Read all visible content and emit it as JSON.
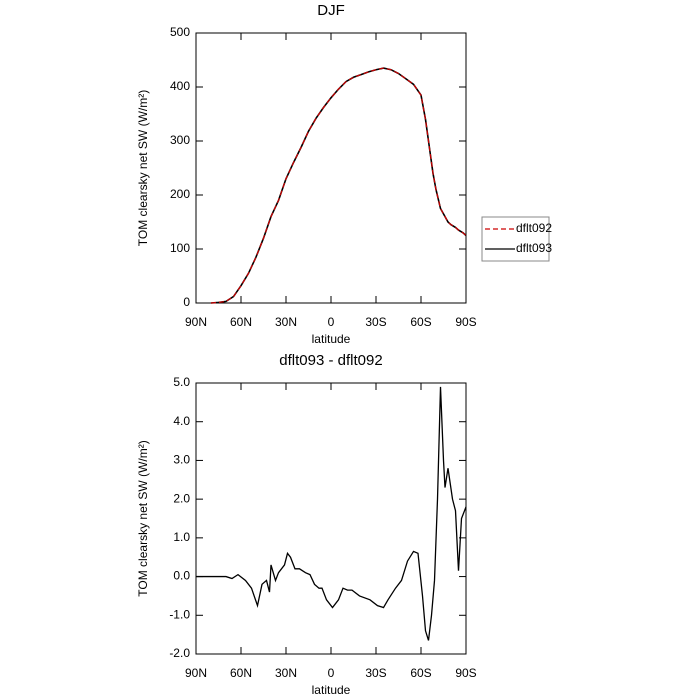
{
  "chart_data": [
    {
      "type": "line",
      "title": "DJF",
      "xlabel": "latitude",
      "ylabel": "TOM clearsky net SW (W/m²)",
      "x": [
        80,
        75,
        70,
        65,
        60,
        55,
        50,
        45,
        40,
        35,
        30,
        25,
        20,
        15,
        10,
        5,
        0,
        -5,
        -10,
        -15,
        -20,
        -25,
        -30,
        -35,
        -40,
        -45,
        -50,
        -55,
        -60,
        -63,
        -65,
        -68,
        -70,
        -73,
        -75,
        -78,
        -80,
        -83,
        -85,
        -88,
        -90
      ],
      "series": [
        {
          "name": "dflt093",
          "color": "#000000",
          "dashed": false,
          "values": [
            0,
            1,
            3,
            12,
            32,
            55,
            85,
            120,
            160,
            190,
            230,
            260,
            288,
            318,
            342,
            362,
            380,
            396,
            410,
            418,
            423,
            428,
            432,
            435,
            432,
            425,
            415,
            405,
            385,
            340,
            300,
            240,
            210,
            175,
            165,
            150,
            145,
            140,
            135,
            130,
            125
          ]
        },
        {
          "name": "dflt092",
          "color": "#cc0000",
          "dashed": true,
          "values": [
            0,
            1,
            3,
            12,
            32,
            55,
            85,
            120,
            160,
            190,
            230,
            260,
            288,
            318,
            342,
            362,
            380,
            396,
            410,
            418,
            423,
            428,
            432,
            435,
            432,
            425,
            415,
            405,
            385,
            340,
            300,
            240,
            210,
            175,
            165,
            150,
            145,
            140,
            135,
            130,
            125
          ]
        }
      ],
      "xlim": [
        90,
        -90
      ],
      "xticks": [
        {
          "value": 90,
          "label": "90N"
        },
        {
          "value": 60,
          "label": "60N"
        },
        {
          "value": 30,
          "label": "30N"
        },
        0,
        {
          "value": -30,
          "label": "30S"
        },
        {
          "value": -60,
          "label": "60S"
        },
        {
          "value": -90,
          "label": "90S"
        }
      ],
      "ylim": [
        0,
        500
      ],
      "yticks": [
        0,
        100,
        200,
        300,
        400,
        500
      ],
      "legend": "right"
    },
    {
      "type": "line",
      "title": "dflt093 - dflt092",
      "xlabel": "latitude",
      "ylabel": "TOM clearsky net SW (W/m²)",
      "x": [
        90,
        70,
        66,
        62,
        57,
        53,
        49,
        46,
        43,
        41,
        40,
        37,
        35,
        31,
        29,
        27,
        24,
        21,
        17,
        14,
        11,
        8,
        6,
        3,
        -1,
        -5,
        -8,
        -11,
        -14,
        -19,
        -26,
        -31,
        -35,
        -38,
        -43,
        -47,
        -51,
        -55,
        -58,
        -61,
        -63,
        -65,
        -67,
        -69,
        -71,
        -73,
        -75,
        -76,
        -78,
        -81,
        -83,
        -85,
        -87,
        -90
      ],
      "values": [
        0,
        0,
        -0.05,
        0.05,
        -0.1,
        -0.3,
        -0.75,
        -0.2,
        -0.1,
        -0.4,
        0.3,
        -0.1,
        0.1,
        0.3,
        0.6,
        0.5,
        0.2,
        0.2,
        0.1,
        0.05,
        -0.2,
        -0.3,
        -0.3,
        -0.6,
        -0.8,
        -0.6,
        -0.3,
        -0.35,
        -0.35,
        -0.5,
        -0.6,
        -0.75,
        -0.8,
        -0.6,
        -0.3,
        -0.1,
        0.4,
        0.65,
        0.6,
        -0.5,
        -1.4,
        -1.65,
        -1.0,
        -0.1,
        2.0,
        4.9,
        3.0,
        2.3,
        2.8,
        2.0,
        1.7,
        0.15,
        1.5,
        1.8
      ],
      "color": "#000000",
      "xlim": [
        90,
        -90
      ],
      "xticks": [
        {
          "value": 90,
          "label": "90N"
        },
        {
          "value": 60,
          "label": "60N"
        },
        {
          "value": 30,
          "label": "30N"
        },
        0,
        {
          "value": -30,
          "label": "30S"
        },
        {
          "value": -60,
          "label": "60S"
        },
        {
          "value": -90,
          "label": "90S"
        }
      ],
      "ylim": [
        -2,
        5
      ],
      "yticks": [
        {
          "value": -2,
          "label": "-2.0"
        },
        {
          "value": -1,
          "label": "-1.0"
        },
        {
          "value": 0,
          "label": "0.0"
        },
        {
          "value": 1,
          "label": "1.0"
        },
        {
          "value": 2,
          "label": "2.0"
        },
        {
          "value": 3,
          "label": "3.0"
        },
        {
          "value": 4,
          "label": "4.0"
        },
        {
          "value": 5,
          "label": "5.0"
        }
      ]
    }
  ]
}
